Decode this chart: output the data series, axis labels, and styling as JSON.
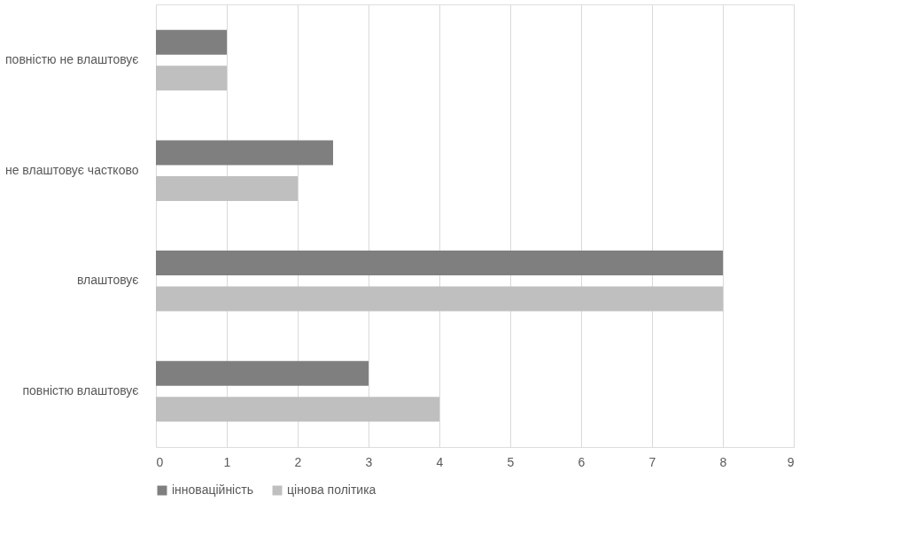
{
  "chart_data": {
    "type": "bar",
    "orientation": "horizontal",
    "categories": [
      "повністю не влаштовує",
      "не влаштовує частково",
      "влаштовує",
      "повністю влаштовує"
    ],
    "series": [
      {
        "name": "інноваційність",
        "color": "#7f7f7f",
        "values": [
          1,
          2.5,
          8,
          3
        ]
      },
      {
        "name": "цінова політика",
        "color": "#bfbfbf",
        "values": [
          1,
          2,
          8,
          4
        ]
      }
    ],
    "xlim": [
      0,
      9
    ],
    "xticks": [
      0,
      1,
      2,
      3,
      4,
      5,
      6,
      7,
      8,
      9
    ],
    "grid": "x",
    "legend": "bottom"
  }
}
